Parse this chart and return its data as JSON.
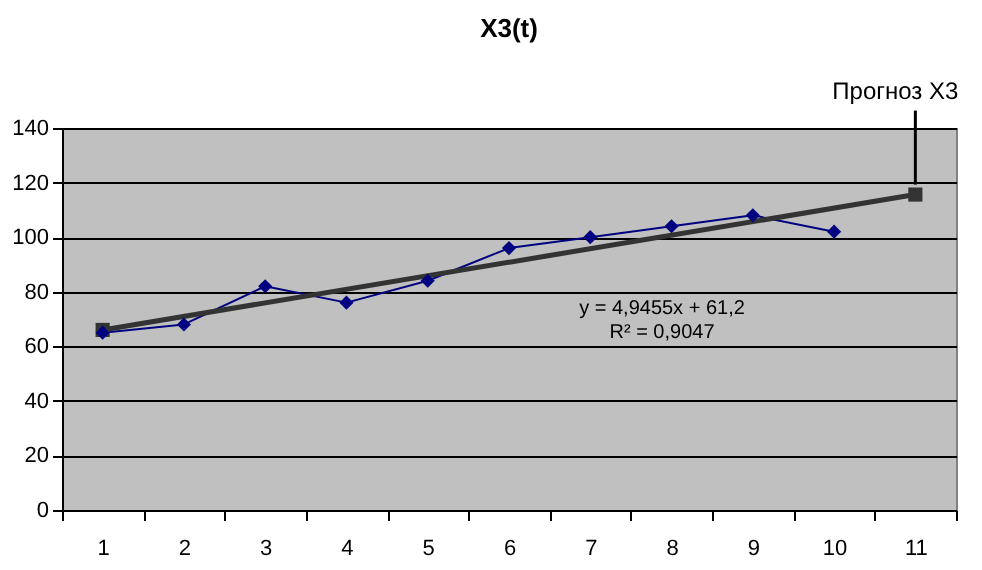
{
  "chart_data": {
    "type": "line",
    "title": "X3(t)",
    "categories": [
      "1",
      "2",
      "3",
      "4",
      "5",
      "6",
      "7",
      "8",
      "9",
      "10",
      "11"
    ],
    "series": [
      {
        "color": "#000080",
        "marker": "diamond",
        "values": [
          65,
          68,
          82,
          76,
          84,
          96,
          100,
          104,
          108,
          102,
          null
        ]
      },
      {
        "type": "line",
        "color": "#333333",
        "marker": "square",
        "values": [
          66,
          null,
          null,
          null,
          null,
          null,
          null,
          null,
          null,
          null,
          115.6
        ]
      }
    ],
    "ylim": [
      0,
      140
    ],
    "yticks": [
      0,
      20,
      40,
      60,
      80,
      100,
      120,
      140
    ],
    "grid": "y",
    "annotations": [
      {
        "text": "Прогноз X3",
        "x": "11",
        "y": 115.6
      },
      "y = 4,9455x + 61,2",
      "R² = 0,9047"
    ]
  }
}
